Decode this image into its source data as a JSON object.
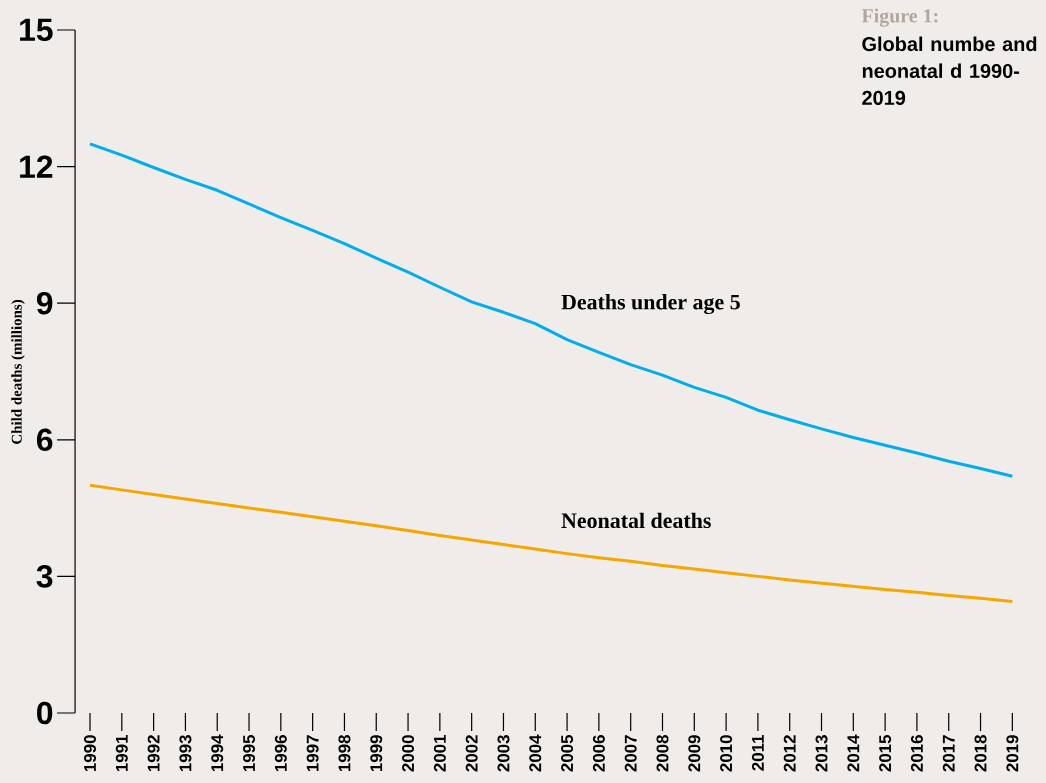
{
  "chart_data": {
    "type": "line",
    "title": "Figure 1:",
    "subtitle": "Global numbe and neonatal d 1990-2019",
    "ylabel": "Child deaths (millions)",
    "categories": [
      "1990",
      "1991",
      "1992",
      "1993",
      "1994",
      "1995",
      "1996",
      "1997",
      "1998",
      "1999",
      "2000",
      "2001",
      "2002",
      "2003",
      "2004",
      "2005",
      "2006",
      "2007",
      "2008",
      "2009",
      "2010",
      "2011",
      "2012",
      "2013",
      "2014",
      "2015",
      "2016",
      "2017",
      "2018",
      "2019"
    ],
    "series": [
      {
        "name": "Deaths under age 5",
        "color": "#00aeef",
        "values": [
          12.5,
          12.25,
          11.98,
          11.72,
          11.48,
          11.18,
          10.88,
          10.6,
          10.31,
          9.99,
          9.68,
          9.35,
          9.03,
          8.8,
          8.55,
          8.2,
          7.92,
          7.65,
          7.42,
          7.15,
          6.93,
          6.65,
          6.44,
          6.24,
          6.05,
          5.88,
          5.71,
          5.53,
          5.37,
          5.2
        ]
      },
      {
        "name": "Neonatal deaths",
        "color": "#f7a600",
        "values": [
          5.0,
          4.9,
          4.8,
          4.7,
          4.6,
          4.5,
          4.41,
          4.31,
          4.21,
          4.11,
          4.01,
          3.9,
          3.8,
          3.7,
          3.6,
          3.5,
          3.41,
          3.33,
          3.24,
          3.16,
          3.08,
          3.0,
          2.92,
          2.85,
          2.78,
          2.71,
          2.65,
          2.58,
          2.52,
          2.45
        ]
      }
    ],
    "ylim": [
      0,
      15
    ],
    "yticks": [
      0,
      3,
      6,
      9,
      12,
      15
    ],
    "grid": false,
    "legend": false,
    "marker": "none",
    "line_style": "solid"
  }
}
